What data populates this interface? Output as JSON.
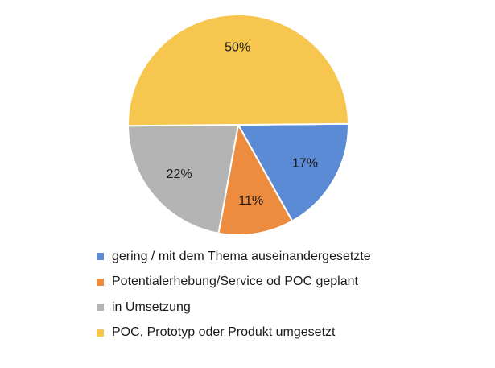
{
  "chart_data": {
    "type": "pie",
    "title": "",
    "slices": [
      {
        "label": "gering / mit dem Thema auseinandergesetzte",
        "value": 17,
        "value_label": "17%",
        "color": "#5B8BD4"
      },
      {
        "label": "Potentialerhebung/Service od POC geplant",
        "value": 11,
        "value_label": "11%",
        "color": "#ED8C3E"
      },
      {
        "label": "in Umsetzung",
        "value": 22,
        "value_label": "22%",
        "color": "#B4B4B4"
      },
      {
        "label": "POC, Prototyp oder Produkt umgesetzt",
        "value": 50,
        "value_label": "50%",
        "color": "#F6C64E"
      }
    ],
    "legend_position": "bottom"
  }
}
